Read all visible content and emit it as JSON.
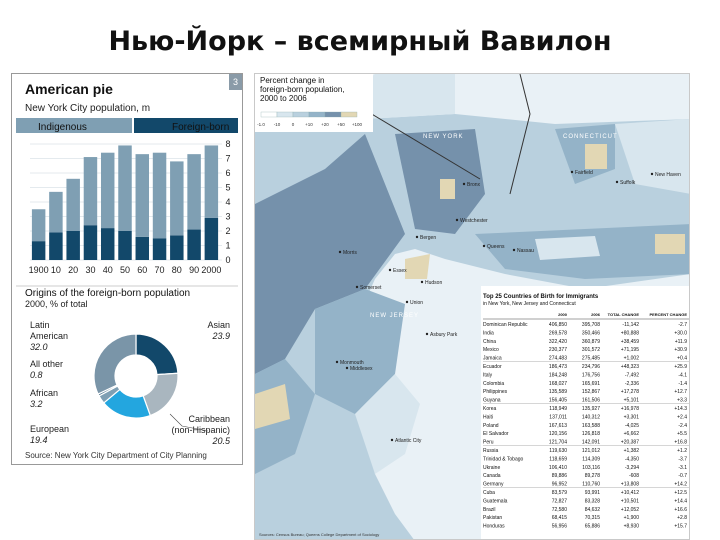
{
  "slide_title": "Нью-Йорк – всемирный Вавилон",
  "pie_panel": {
    "title": "American pie",
    "badge": "3",
    "subtitle": "New York City population, m",
    "legend": [
      {
        "name": "Indigenous",
        "color": "#7f9fb3"
      },
      {
        "name": "Foreign-born",
        "color": "#12486a"
      }
    ],
    "chart_data": [
      {
        "type": "bar",
        "title": "American pie",
        "subtitle": "New York City population, m",
        "categories": [
          "1900",
          "10",
          "20",
          "30",
          "40",
          "50",
          "60",
          "70",
          "80",
          "90",
          "2000"
        ],
        "series": [
          {
            "name": "Indigenous",
            "values": [
              2.2,
              2.8,
              3.6,
              4.7,
              5.2,
              5.9,
              5.7,
              5.9,
              5.1,
              5.2,
              5.0
            ]
          },
          {
            "name": "Foreign-born",
            "values": [
              1.3,
              1.9,
              2.0,
              2.4,
              2.2,
              2.0,
              1.6,
              1.5,
              1.7,
              2.1,
              2.9
            ]
          }
        ],
        "stacked": true,
        "ylim": [
          0,
          8
        ],
        "yticks": [
          "0",
          "1",
          "2",
          "3",
          "4",
          "5",
          "6",
          "7",
          "8"
        ],
        "ytick_side": "right"
      },
      {
        "type": "pie",
        "title": "Origins of the foreign-born population",
        "subtitle": "2000, % of total",
        "slices": [
          {
            "name": "Asian",
            "value": 23.9,
            "color": "#12486a",
            "label": "23.9"
          },
          {
            "name": "Caribbean (non-Hispanic)",
            "value": 20.5,
            "color": "#a9b6bf",
            "label": "20.5"
          },
          {
            "name": "European",
            "value": 19.4,
            "color": "#23a6df",
            "label": "19.4"
          },
          {
            "name": "African",
            "value": 3.2,
            "color": "#7f9fb3",
            "label": "3.2"
          },
          {
            "name": "All other",
            "value": 0.8,
            "color": "#35607c",
            "label": "0.8"
          },
          {
            "name": "Latin American",
            "value": 32.0,
            "color": "#7a95a8",
            "label": "32.0"
          }
        ]
      }
    ],
    "pie_labels": {
      "latin_1": "Latin",
      "latin_2": "American",
      "latin_val": "32.0",
      "asian": "Asian",
      "asian_val": "23.9",
      "other": "All other",
      "other_val": "0.8",
      "african": "African",
      "african_val": "3.2",
      "carib_1": "Caribbean",
      "carib_2": "(non-Hispanic)",
      "carib_val": "20.5",
      "euro": "European",
      "euro_val": "19.4"
    },
    "source": "Source: New York City Department of City Planning"
  },
  "map_panel": {
    "title_lines": [
      "Percent change in",
      "foreign-born population,",
      "2000 to 2006"
    ],
    "legend_ticks": [
      "-1.0",
      "-10",
      "0",
      "+10",
      "+20",
      "+50",
      "+100"
    ],
    "legend_colors": [
      "#ffffff",
      "#d8e6ee",
      "#b9d0de",
      "#94b3c8",
      "#7591ab",
      "#e2d7b4"
    ],
    "states": [
      "NEW YORK",
      "CONNECTICUT",
      "NEW JERSEY"
    ],
    "places": [
      "Bronx",
      "Westchester",
      "Morris",
      "Bergen",
      "Suffolk",
      "Nassau",
      "Essex",
      "Hudson",
      "Queens",
      "Union",
      "Middlesex",
      "Monmouth",
      "Somerset",
      "Fairfield",
      "New Haven",
      "Atlantic City",
      "Asbury Park"
    ],
    "table": {
      "title": "Top 25 Countries of Birth for Immigrants",
      "subtitle": "in New York, New Jersey and Connecticut",
      "headers": [
        "",
        "2000",
        "2006",
        "TOTAL CHANGE",
        "PERCENT CHANGE"
      ],
      "rows": [
        [
          "Dominican Republic",
          "406,850",
          "395,708",
          "-11,142",
          "-2.7"
        ],
        [
          "India",
          "269,578",
          "350,466",
          "+80,888",
          "+30.0"
        ],
        [
          "China",
          "322,420",
          "360,879",
          "+38,459",
          "+11.9"
        ],
        [
          "Mexico",
          "230,377",
          "301,572",
          "+71,195",
          "+30.9"
        ],
        [
          "Jamaica",
          "274,483",
          "275,485",
          "+1,002",
          "+0.4"
        ],
        [
          "Ecuador",
          "186,473",
          "234,796",
          "+48,323",
          "+25.9"
        ],
        [
          "Italy",
          "184,248",
          "176,756",
          "-7,492",
          "-4.1"
        ],
        [
          "Colombia",
          "168,027",
          "165,691",
          "-2,336",
          "-1.4"
        ],
        [
          "Philippines",
          "135,589",
          "152,867",
          "+17,278",
          "+12.7"
        ],
        [
          "Guyana",
          "156,405",
          "161,506",
          "+5,101",
          "+3.3"
        ],
        [
          "Korea",
          "118,949",
          "135,927",
          "+16,978",
          "+14.3"
        ],
        [
          "Haiti",
          "137,011",
          "140,312",
          "+3,301",
          "+2.4"
        ],
        [
          "Poland",
          "167,613",
          "163,588",
          "-4,025",
          "-2.4"
        ],
        [
          "El Salvador",
          "120,156",
          "126,818",
          "+6,662",
          "+5.5"
        ],
        [
          "Peru",
          "121,704",
          "142,091",
          "+20,387",
          "+16.8"
        ],
        [
          "Russia",
          "119,630",
          "121,012",
          "+1,382",
          "+1.2"
        ],
        [
          "Trinidad & Tobago",
          "118,659",
          "114,309",
          "-4,350",
          "-3.7"
        ],
        [
          "Ukraine",
          "106,410",
          "103,116",
          "-3,294",
          "-3.1"
        ],
        [
          "Canada",
          "89,886",
          "89,278",
          "-608",
          "-0.7"
        ],
        [
          "Germany",
          "96,952",
          "110,760",
          "+13,808",
          "+14.2"
        ],
        [
          "Cuba",
          "83,579",
          "93,991",
          "+10,412",
          "+12.5"
        ],
        [
          "Guatemala",
          "72,827",
          "83,328",
          "+10,501",
          "+14.4"
        ],
        [
          "Brazil",
          "72,580",
          "84,632",
          "+12,052",
          "+16.6"
        ],
        [
          "Pakistan",
          "68,415",
          "70,315",
          "+1,900",
          "+2.8"
        ],
        [
          "Honduras",
          "56,956",
          "65,886",
          "+8,930",
          "+15.7"
        ]
      ]
    },
    "source": "Sources: Census Bureau; Queens College Department of Sociology"
  }
}
